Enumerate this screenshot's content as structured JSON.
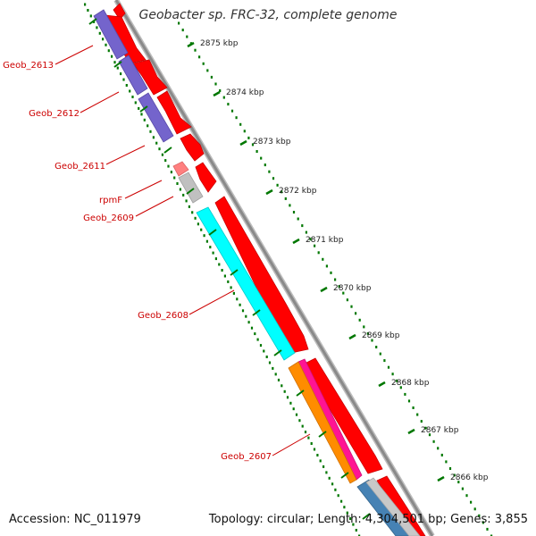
{
  "title": "Geobacter sp. FRC-32, complete genome",
  "footer": {
    "accession": "Accession: NC_011979",
    "summary": "Topology: circular; Length: 4,304,501 bp; Genes: 3,855"
  },
  "colors": {
    "cds_forward": "#ff0000",
    "ruler_dots": "#007700",
    "label": "#cc0000",
    "backbone": "#999999",
    "violet": "#7464cc",
    "cyan": "#00ffff",
    "orange": "#ff8c00",
    "magenta": "#ff1493",
    "pink": "#ff7f7f",
    "gray_feature": "#c0c0c0",
    "steelblue": "#4682b4"
  },
  "kbp_marks": [
    "2875 kbp",
    "2874 kbp",
    "2873 kbp",
    "2872 kbp",
    "2871 kbp",
    "2870 kbp",
    "2869 kbp",
    "2868 kbp",
    "2867 kbp",
    "2866 kbp"
  ],
  "gene_labels": [
    "Geob_2613",
    "Geob_2612",
    "Geob_2611",
    "rpmF",
    "Geob_2609",
    "Geob_2608",
    "Geob_2607"
  ]
}
